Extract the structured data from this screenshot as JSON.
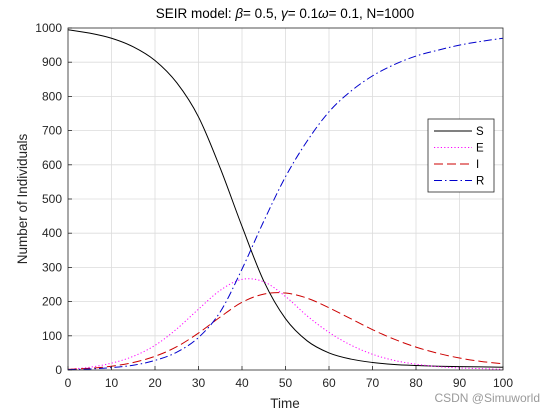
{
  "chart_data": {
    "type": "line",
    "title": "SEIR model: β= 0.5, γ= 0.1ω= 0.1, N=1000",
    "xlabel": "Time",
    "ylabel": "Number of Individuals",
    "xlim": [
      0,
      100
    ],
    "ylim": [
      0,
      1000
    ],
    "xticks": [
      0,
      10,
      20,
      30,
      40,
      50,
      60,
      70,
      80,
      90,
      100
    ],
    "yticks": [
      0,
      100,
      200,
      300,
      400,
      500,
      600,
      700,
      800,
      900,
      1000
    ],
    "grid": true,
    "legend_position": "right",
    "x": [
      0,
      5,
      10,
      15,
      20,
      25,
      30,
      35,
      40,
      45,
      50,
      55,
      60,
      65,
      70,
      75,
      80,
      85,
      90,
      95,
      100
    ],
    "series": [
      {
        "name": "S",
        "color": "#000000",
        "dash": "solid",
        "values": [
          995,
          985,
          970,
          945,
          905,
          840,
          740,
          590,
          420,
          260,
          150,
          85,
          50,
          32,
          22,
          16,
          13,
          11,
          10,
          9,
          8
        ]
      },
      {
        "name": "E",
        "color": "#ff00ff",
        "dash": "dotted",
        "values": [
          2,
          8,
          20,
          40,
          72,
          120,
          178,
          233,
          265,
          258,
          215,
          158,
          110,
          73,
          46,
          28,
          17,
          10,
          6,
          4,
          2
        ]
      },
      {
        "name": "I",
        "color": "#cc0000",
        "dash": "dashed",
        "values": [
          2,
          5,
          11,
          22,
          40,
          68,
          108,
          155,
          198,
          222,
          225,
          210,
          182,
          150,
          118,
          90,
          67,
          49,
          35,
          25,
          18
        ]
      },
      {
        "name": "R",
        "color": "#0000cc",
        "dash": "dashdot",
        "values": [
          1,
          3,
          7,
          14,
          28,
          52,
          95,
          170,
          295,
          435,
          565,
          670,
          755,
          815,
          860,
          893,
          918,
          935,
          950,
          961,
          970
        ]
      }
    ]
  },
  "watermark": "CSDN @Simuworld"
}
